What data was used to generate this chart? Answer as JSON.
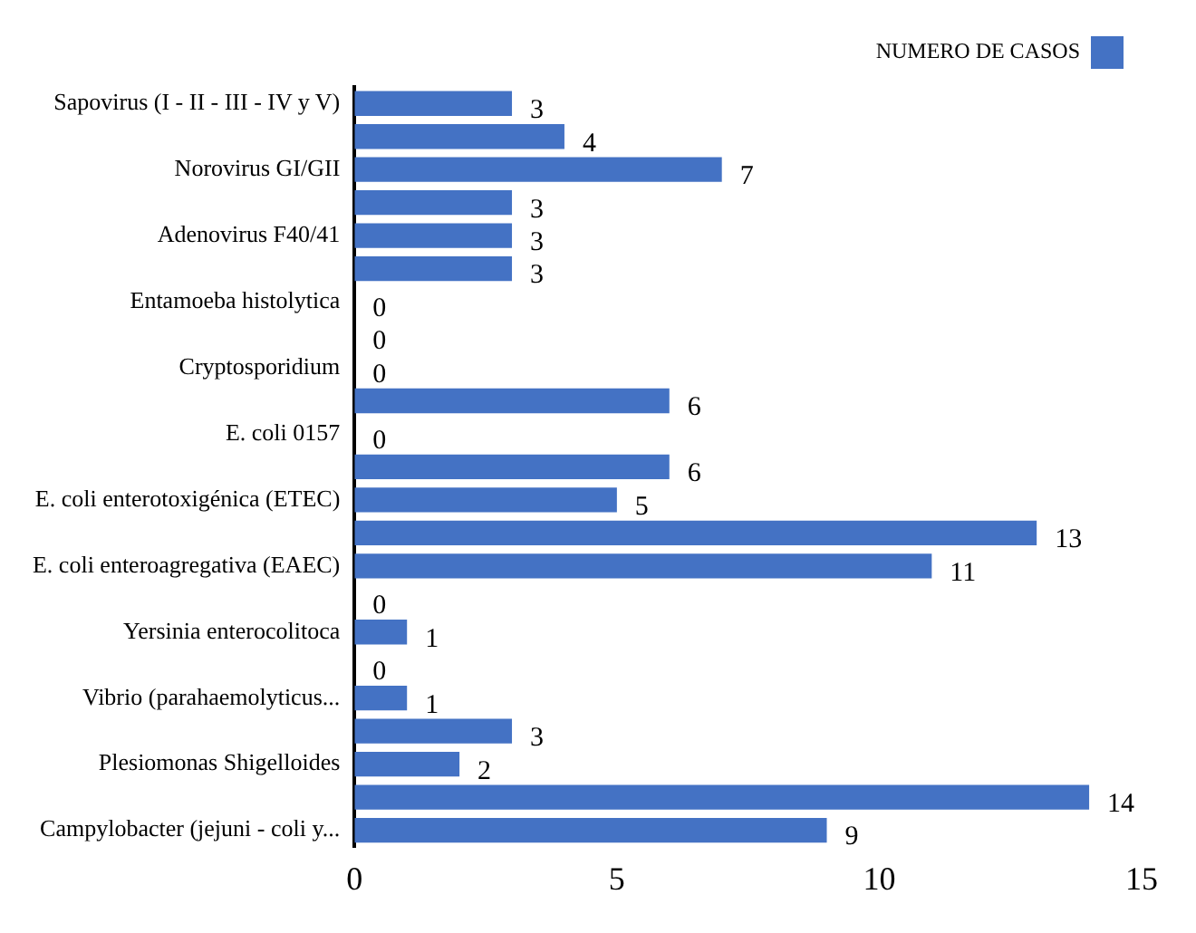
{
  "chart_data": {
    "type": "bar",
    "orientation": "horizontal",
    "categories": [
      "Sapovirus (I - II - III - IV y V)",
      null,
      "Norovirus GI/GII",
      null,
      "Adenovirus F40/41",
      null,
      "Entamoeba histolytica",
      null,
      "Cryptosporidium",
      null,
      "E. coli 0157",
      null,
      "E. coli enterotoxigénica (ETEC)",
      null,
      "E. coli enteroagregativa (EAEC)",
      null,
      "Yersinia enterocolitoca",
      null,
      "Vibrio (parahaemolyticus...",
      null,
      "Plesiomonas Shigelloides",
      null,
      "Campylobacter (jejuni - coli y..."
    ],
    "series": [
      {
        "name": "NUMERO DE CASOS",
        "color": "#4472c4",
        "values": [
          3,
          4,
          7,
          3,
          3,
          3,
          0,
          0,
          0,
          6,
          0,
          6,
          5,
          13,
          11,
          0,
          1,
          0,
          1,
          3,
          2,
          14,
          9
        ]
      }
    ],
    "xlim": [
      0,
      15
    ],
    "xticks": [
      0,
      5,
      10,
      15
    ],
    "grid": false,
    "legend": "top right",
    "data_labels": true
  }
}
